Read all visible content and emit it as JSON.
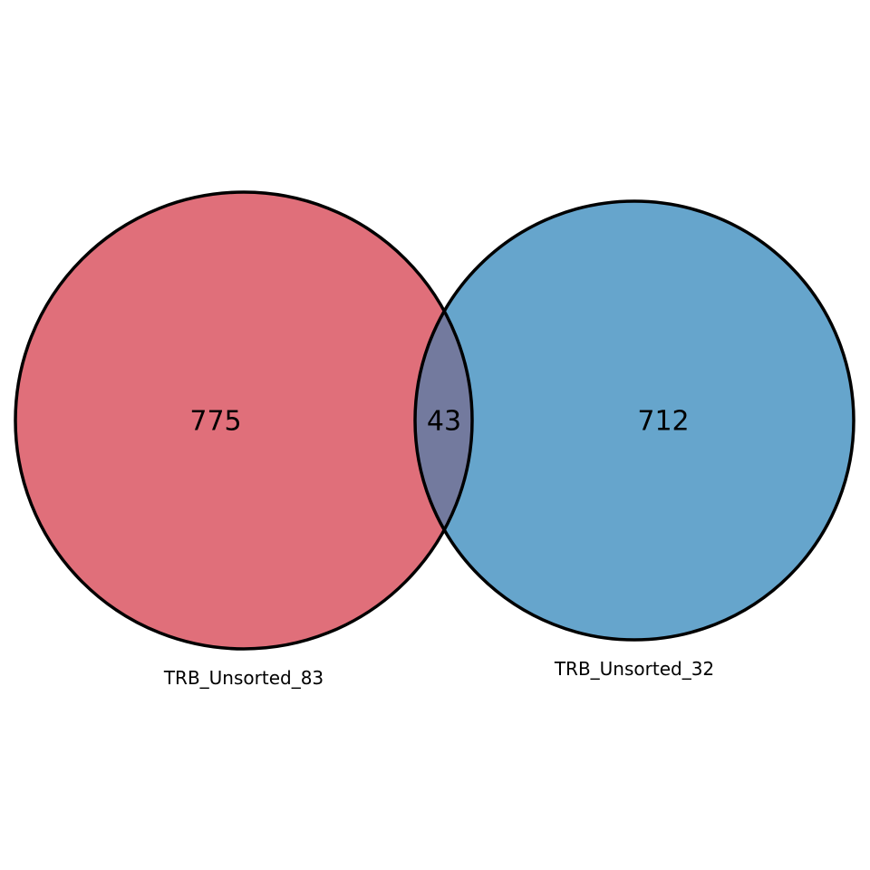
{
  "venn": {
    "sets": [
      {
        "label": "TRB_Unsorted_83",
        "only_count": "775",
        "fill_color": "#e06f7a"
      },
      {
        "label": "TRB_Unsorted_32",
        "only_count": "712",
        "fill_color": "#66a5cc"
      }
    ],
    "intersection": {
      "count": "43",
      "fill_color": "#737a9e"
    },
    "outline_color": "#000000",
    "background_color": "#ffffff"
  }
}
